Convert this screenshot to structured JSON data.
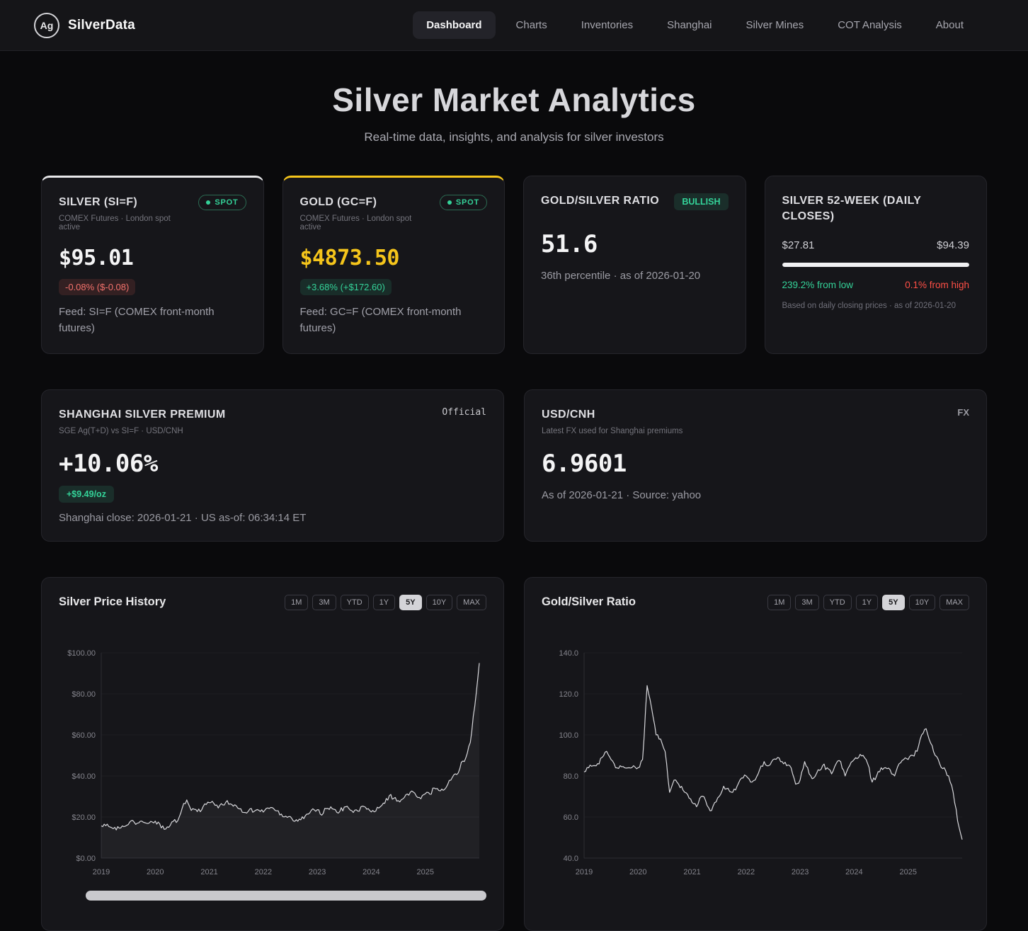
{
  "brand": {
    "logo": "Ag",
    "name": "SilverData"
  },
  "nav": {
    "items": [
      {
        "label": "Dashboard",
        "active": true
      },
      {
        "label": "Charts",
        "active": false
      },
      {
        "label": "Inventories",
        "active": false
      },
      {
        "label": "Shanghai",
        "active": false
      },
      {
        "label": "Silver Mines",
        "active": false
      },
      {
        "label": "COT Analysis",
        "active": false
      },
      {
        "label": "About",
        "active": false
      }
    ]
  },
  "hero": {
    "title": "Silver Market Analytics",
    "subtitle": "Real-time data, insights, and analysis for silver investors"
  },
  "colors": {
    "green": "#34d399",
    "red": "#f4726c",
    "red2": "#ff4f46",
    "gold": "#f5c51b",
    "silver_accent": "#e8e8ea"
  },
  "cards": {
    "silver": {
      "title": "SILVER (SI=F)",
      "badge": "SPOT",
      "sub": "COMEX Futures · London spot active",
      "price": "$95.01",
      "change": "-0.08% ($-0.08)",
      "feed": "Feed: SI=F (COMEX front-month futures)"
    },
    "gold": {
      "title": "GOLD (GC=F)",
      "badge": "SPOT",
      "sub": "COMEX Futures · London spot active",
      "price": "$4873.50",
      "change": "+3.68% (+$172.60)",
      "feed": "Feed: GC=F (COMEX front-month futures)"
    },
    "ratio": {
      "title": "GOLD/SILVER RATIO",
      "badge": "BULLISH",
      "value": "51.6",
      "note": "36th percentile · as of 2026-01-20"
    },
    "week52": {
      "title": "SILVER 52-WEEK (DAILY CLOSES)",
      "low": "$27.81",
      "high": "$94.39",
      "progress_pct": 99.9,
      "from_low": "239.2% from low",
      "from_high": "0.1% from high",
      "note": "Based on daily closing prices · as of 2026-01-20"
    },
    "shanghai": {
      "title": "SHANGHAI SILVER PREMIUM",
      "tag": "Official",
      "sub": "SGE Ag(T+D) vs SI=F · USD/CNH",
      "value": "+10.06%",
      "badge": "+$9.49/oz",
      "note": "Shanghai close: 2026-01-21 · US as-of: 06:34:14 ET"
    },
    "usdcnh": {
      "title": "USD/CNH",
      "tag": "FX",
      "sub": "Latest FX used for Shanghai premiums",
      "value": "6.9601",
      "note": "As of 2026-01-21 · Source: yahoo"
    }
  },
  "charts": {
    "ranges": [
      "1M",
      "3M",
      "YTD",
      "1Y",
      "5Y",
      "10Y",
      "MAX"
    ],
    "active_range": "5Y"
  },
  "chart_data": [
    {
      "type": "line",
      "title": "Silver Price History",
      "start_year": 2019,
      "points_per_year": 12,
      "xticks": [
        2019,
        2020,
        2021,
        2022,
        2023,
        2024,
        2025
      ],
      "ylim": [
        0,
        100
      ],
      "yticks": [
        0,
        20,
        40,
        60,
        80,
        100
      ],
      "ytick_labels": [
        "$0.00",
        "$20.00",
        "$40.00",
        "$60.00",
        "$80.00",
        "$100.00"
      ],
      "area": true,
      "legend": "none",
      "grid": "subtle-horizontal",
      "values": [
        15.7,
        15.8,
        15.1,
        15.0,
        14.6,
        15.3,
        16.3,
        18.3,
        17.0,
        18.0,
        17.0,
        17.9,
        18.0,
        16.7,
        14.0,
        15.0,
        17.9,
        18.2,
        24.4,
        28.3,
        23.2,
        23.7,
        22.6,
        26.4,
        27.0,
        26.7,
        24.4,
        25.9,
        28.0,
        26.1,
        25.5,
        24.0,
        22.2,
        23.9,
        22.8,
        23.3,
        22.4,
        24.4,
        24.6,
        23.0,
        21.5,
        20.4,
        20.2,
        17.9,
        19.0,
        19.2,
        21.4,
        24.0,
        23.6,
        20.9,
        24.1,
        25.0,
        23.6,
        22.7,
        24.9,
        24.2,
        22.2,
        22.9,
        25.3,
        23.8,
        22.5,
        22.9,
        25.0,
        26.7,
        30.4,
        29.1,
        28.0,
        28.8,
        31.2,
        32.7,
        30.2,
        28.9,
        31.3,
        31.1,
        34.1,
        32.9,
        33.0,
        36.0,
        39.3,
        40.7,
        46.7,
        48.8,
        56.3,
        74.0,
        95.0
      ]
    },
    {
      "type": "line",
      "title": "Gold/Silver Ratio",
      "start_year": 2019,
      "points_per_year": 12,
      "xticks": [
        2019,
        2020,
        2021,
        2022,
        2023,
        2024,
        2025
      ],
      "ylim": [
        40,
        140
      ],
      "yticks": [
        40,
        60,
        80,
        100,
        120,
        140
      ],
      "ytick_labels": [
        "40.0",
        "60.0",
        "80.0",
        "100.0",
        "120.0",
        "140.0"
      ],
      "area": false,
      "legend": "none",
      "grid": "subtle-horizontal",
      "values": [
        82,
        84,
        85,
        86,
        89,
        92,
        88,
        84,
        85,
        84,
        84,
        85,
        84,
        88,
        124,
        113,
        100,
        98,
        92,
        72,
        78,
        76,
        73,
        71,
        67,
        65,
        70,
        68,
        63,
        67,
        70,
        75,
        74,
        72,
        75,
        79,
        80,
        77,
        78,
        83,
        87,
        85,
        88,
        89,
        87,
        85,
        84,
        76,
        78,
        87,
        81,
        79,
        83,
        85,
        84,
        81,
        86,
        87,
        80,
        85,
        88,
        89,
        90,
        86,
        77,
        80,
        84,
        84,
        83,
        80,
        86,
        88,
        88,
        90,
        92,
        100,
        103,
        96,
        90,
        86,
        84,
        80,
        72,
        58,
        49
      ]
    }
  ]
}
